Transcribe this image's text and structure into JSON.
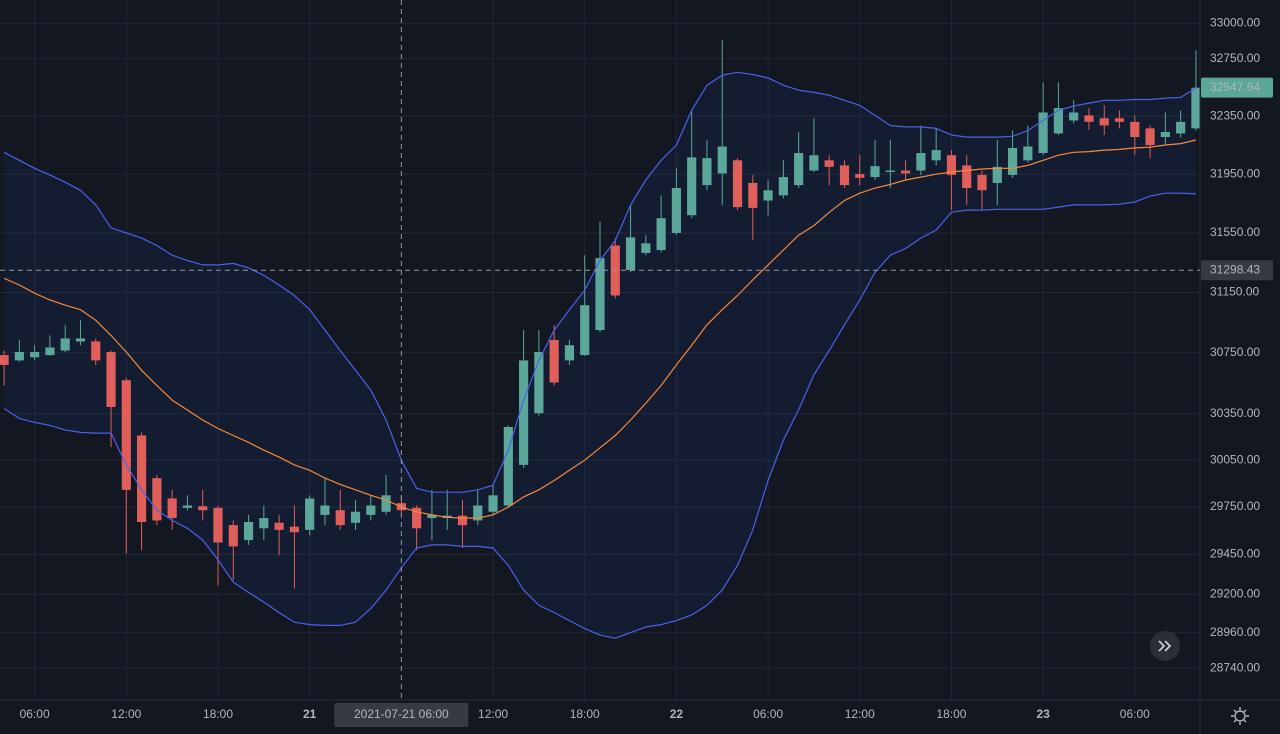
{
  "chart_data": {
    "type": "candlestick",
    "x": [
      "2021-07-20 04:00",
      "2021-07-20 05:00",
      "2021-07-20 06:00",
      "2021-07-20 07:00",
      "2021-07-20 08:00",
      "2021-07-20 09:00",
      "2021-07-20 10:00",
      "2021-07-20 11:00",
      "2021-07-20 12:00",
      "2021-07-20 13:00",
      "2021-07-20 14:00",
      "2021-07-20 15:00",
      "2021-07-20 16:00",
      "2021-07-20 17:00",
      "2021-07-20 18:00",
      "2021-07-20 19:00",
      "2021-07-20 20:00",
      "2021-07-20 21:00",
      "2021-07-20 22:00",
      "2021-07-20 23:00",
      "2021-07-21 00:00",
      "2021-07-21 01:00",
      "2021-07-21 02:00",
      "2021-07-21 03:00",
      "2021-07-21 04:00",
      "2021-07-21 05:00",
      "2021-07-21 06:00",
      "2021-07-21 07:00",
      "2021-07-21 08:00",
      "2021-07-21 09:00",
      "2021-07-21 10:00",
      "2021-07-21 11:00",
      "2021-07-21 12:00",
      "2021-07-21 13:00",
      "2021-07-21 14:00",
      "2021-07-21 15:00",
      "2021-07-21 16:00",
      "2021-07-21 17:00",
      "2021-07-21 18:00",
      "2021-07-21 19:00",
      "2021-07-21 20:00",
      "2021-07-21 21:00",
      "2021-07-21 22:00",
      "2021-07-21 23:00",
      "2021-07-22 00:00",
      "2021-07-22 01:00",
      "2021-07-22 02:00",
      "2021-07-22 03:00",
      "2021-07-22 04:00",
      "2021-07-22 05:00",
      "2021-07-22 06:00",
      "2021-07-22 07:00",
      "2021-07-22 08:00",
      "2021-07-22 09:00",
      "2021-07-22 10:00",
      "2021-07-22 11:00",
      "2021-07-22 12:00",
      "2021-07-22 13:00",
      "2021-07-22 14:00",
      "2021-07-22 15:00",
      "2021-07-22 16:00",
      "2021-07-22 17:00",
      "2021-07-22 18:00",
      "2021-07-22 19:00",
      "2021-07-22 20:00",
      "2021-07-22 21:00",
      "2021-07-22 22:00",
      "2021-07-22 23:00",
      "2021-07-23 00:00",
      "2021-07-23 01:00",
      "2021-07-23 02:00",
      "2021-07-23 03:00",
      "2021-07-23 04:00",
      "2021-07-23 05:00",
      "2021-07-23 06:00",
      "2021-07-23 07:00",
      "2021-07-23 08:00",
      "2021-07-23 09:00",
      "2021-07-23 10:00"
    ],
    "open": [
      30735,
      30700,
      30720,
      30735,
      30765,
      30825,
      30825,
      30755,
      30570,
      30210,
      29935,
      29805,
      29745,
      29755,
      29745,
      29635,
      29540,
      29615,
      29650,
      29625,
      29605,
      29700,
      29730,
      29650,
      29700,
      29720,
      29775,
      29745,
      29680,
      29680,
      29695,
      29665,
      29720,
      29760,
      30020,
      30355,
      30835,
      30700,
      30735,
      30900,
      31465,
      31300,
      31415,
      31435,
      31550,
      31670,
      31875,
      31955,
      32045,
      31890,
      31770,
      31805,
      31875,
      31975,
      32045,
      32010,
      31950,
      31930,
      31965,
      31975,
      31975,
      32045,
      32080,
      32010,
      31945,
      31890,
      31945,
      32045,
      32095,
      32230,
      32320,
      32355,
      32335,
      32335,
      32310,
      32265,
      32205,
      32230,
      32265
    ],
    "high": [
      30765,
      30835,
      30800,
      30865,
      30935,
      30965,
      30845,
      30765,
      30585,
      30230,
      29955,
      29860,
      29825,
      29860,
      29760,
      29665,
      29700,
      29760,
      29700,
      29760,
      29825,
      29935,
      29860,
      29795,
      29825,
      29955,
      29825,
      29760,
      29860,
      29860,
      29795,
      29860,
      29890,
      30275,
      30900,
      30900,
      30935,
      30835,
      31400,
      31625,
      31515,
      31740,
      31535,
      31805,
      31990,
      32390,
      32185,
      32880,
      32060,
      31945,
      31910,
      32045,
      32240,
      32335,
      32080,
      32045,
      32080,
      32185,
      32185,
      32045,
      32285,
      32265,
      32115,
      32080,
      31975,
      32185,
      32250,
      32285,
      32585,
      32585,
      32460,
      32405,
      32425,
      32390,
      32355,
      32285,
      32375,
      32390,
      32810
    ],
    "low": [
      30535,
      30690,
      30700,
      30730,
      30755,
      30800,
      30670,
      30135,
      29455,
      29475,
      29635,
      29605,
      29730,
      29665,
      29255,
      29290,
      29510,
      29540,
      29445,
      29235,
      29570,
      29635,
      29605,
      29605,
      29665,
      29700,
      29700,
      29475,
      29540,
      29605,
      29490,
      29635,
      29700,
      29745,
      30000,
      30340,
      30535,
      30670,
      30730,
      30885,
      31110,
      31285,
      31400,
      31420,
      31535,
      31650,
      31840,
      31740,
      31705,
      31500,
      31670,
      31785,
      31855,
      31965,
      31875,
      31855,
      31875,
      31910,
      31855,
      31910,
      31945,
      32010,
      31705,
      31740,
      31705,
      31740,
      31925,
      32030,
      32080,
      32220,
      32300,
      32255,
      32220,
      32265,
      32080,
      32060,
      32150,
      32200,
      32250
    ],
    "close": [
      30670,
      30755,
      30755,
      30785,
      30845,
      30845,
      30700,
      30395,
      29860,
      29655,
      29665,
      29680,
      29760,
      29730,
      29525,
      29500,
      29655,
      29680,
      29605,
      29590,
      29805,
      29760,
      29635,
      29720,
      29760,
      29825,
      29730,
      29615,
      29700,
      29695,
      29635,
      29760,
      29825,
      30265,
      30700,
      30755,
      30555,
      30800,
      31065,
      31380,
      31130,
      31520,
      31480,
      31650,
      31855,
      32065,
      32060,
      32140,
      31725,
      31720,
      31840,
      31930,
      32095,
      32080,
      32000,
      31875,
      31925,
      32005,
      31975,
      31955,
      32095,
      32115,
      31945,
      31855,
      31840,
      32000,
      32130,
      32140,
      32375,
      32405,
      32375,
      32310,
      32285,
      32310,
      32205,
      32150,
      32240,
      32310,
      32547.64
    ],
    "up_color": "#5ba79a",
    "down_color": "#e05f5a",
    "overlays": [
      {
        "color": "#4a62e8",
        "values": [
          32100,
          32045,
          31990,
          31945,
          31895,
          31840,
          31740,
          31585,
          31550,
          31515,
          31465,
          31400,
          31365,
          31335,
          31335,
          31345,
          31315,
          31265,
          31200,
          31130,
          31035,
          30900,
          30765,
          30635,
          30505,
          30310,
          30050,
          29870,
          29845,
          29845,
          29845,
          29860,
          29890,
          30115,
          30440,
          30700,
          30900,
          31035,
          31165,
          31365,
          31500,
          31740,
          31910,
          32045,
          32150,
          32390,
          32565,
          32635,
          32655,
          32640,
          32615,
          32565,
          32530,
          32515,
          32495,
          32460,
          32425,
          32355,
          32285,
          32275,
          32275,
          32265,
          32220,
          32205,
          32205,
          32205,
          32210,
          32250,
          32320,
          32390,
          32420,
          32440,
          32460,
          32460,
          32465,
          32465,
          32475,
          32480,
          32545
        ]
      },
      {
        "color": "#f5893a",
        "values": [
          31245,
          31200,
          31145,
          31100,
          31065,
          31035,
          30965,
          30865,
          30755,
          30635,
          30535,
          30440,
          30375,
          30310,
          30255,
          30210,
          30165,
          30115,
          30070,
          30020,
          29985,
          29935,
          29895,
          29860,
          29825,
          29795,
          29750,
          29720,
          29700,
          29685,
          29680,
          29680,
          29700,
          29750,
          29815,
          29860,
          29920,
          29985,
          30050,
          30130,
          30210,
          30310,
          30420,
          30535,
          30670,
          30800,
          30935,
          31035,
          31130,
          31235,
          31335,
          31435,
          31535,
          31600,
          31690,
          31770,
          31820,
          31855,
          31880,
          31910,
          31930,
          31950,
          31965,
          31975,
          31985,
          31990,
          31990,
          32010,
          32045,
          32080,
          32100,
          32105,
          32115,
          32120,
          32130,
          32135,
          32150,
          32160,
          32185
        ]
      },
      {
        "color": "#4a62e8",
        "values": [
          30385,
          30320,
          30295,
          30275,
          30245,
          30230,
          30225,
          30225,
          30020,
          29860,
          29730,
          29665,
          29615,
          29540,
          29415,
          29275,
          29210,
          29150,
          29085,
          29025,
          29010,
          29005,
          29005,
          29025,
          29110,
          29225,
          29365,
          29490,
          29510,
          29510,
          29500,
          29500,
          29490,
          29380,
          29225,
          29130,
          29085,
          29035,
          28985,
          28945,
          28925,
          28960,
          28995,
          29010,
          29035,
          29070,
          29130,
          29225,
          29380,
          29605,
          29920,
          30180,
          30375,
          30605,
          30765,
          30935,
          31100,
          31285,
          31400,
          31445,
          31515,
          31570,
          31690,
          31705,
          31705,
          31710,
          31710,
          31710,
          31710,
          31725,
          31740,
          31740,
          31740,
          31745,
          31760,
          31800,
          31820,
          31820,
          31815
        ]
      }
    ],
    "band_fill": "rgba(41,98,255,0.07)",
    "xlim": [
      "2021-07-20 03:44",
      "2021-07-23 10:16"
    ],
    "ylim": [
      28545,
      33165
    ],
    "log_scale": true,
    "grid": true,
    "yticks": [
      {
        "value": 33000,
        "label": "33000.00"
      },
      {
        "value": 32750,
        "label": "32750.00"
      },
      {
        "value": 32350,
        "label": "32350.00"
      },
      {
        "value": 31950,
        "label": "31950.00"
      },
      {
        "value": 31550,
        "label": "31550.00"
      },
      {
        "value": 31150,
        "label": "31150.00"
      },
      {
        "value": 30750,
        "label": "30750.00"
      },
      {
        "value": 30350,
        "label": "30350.00"
      },
      {
        "value": 30050,
        "label": "30050.00"
      },
      {
        "value": 29750,
        "label": "29750.00"
      },
      {
        "value": 29450,
        "label": "29450.00"
      },
      {
        "value": 29200,
        "label": "29200.00"
      },
      {
        "value": 28960,
        "label": "28960.00"
      },
      {
        "value": 28740,
        "label": "28740.00"
      }
    ],
    "xticks": [
      {
        "value": "2021-07-20 06:00",
        "label": "06:00"
      },
      {
        "value": "2021-07-20 12:00",
        "label": "12:00"
      },
      {
        "value": "2021-07-20 18:00",
        "label": "18:00"
      },
      {
        "value": "2021-07-21 00:00",
        "label": "21"
      },
      {
        "value": "2021-07-21 12:00",
        "label": "12:00"
      },
      {
        "value": "2021-07-21 18:00",
        "label": "18:00"
      },
      {
        "value": "2021-07-22 00:00",
        "label": "22"
      },
      {
        "value": "2021-07-22 06:00",
        "label": "06:00"
      },
      {
        "value": "2021-07-22 12:00",
        "label": "12:00"
      },
      {
        "value": "2021-07-22 18:00",
        "label": "18:00"
      },
      {
        "value": "2021-07-23 00:00",
        "label": "23"
      },
      {
        "value": "2021-07-23 06:00",
        "label": "06:00"
      }
    ],
    "crosshair": {
      "x": "2021-07-21 06:00",
      "y": 31298.43
    }
  }
}
